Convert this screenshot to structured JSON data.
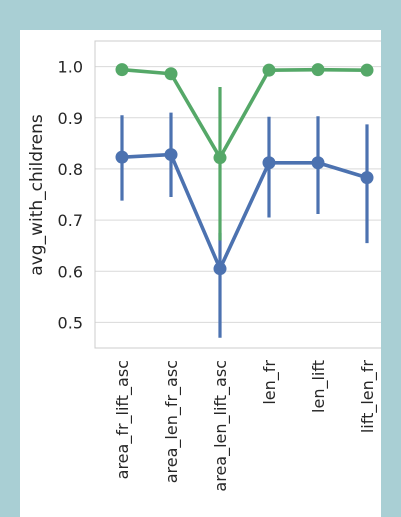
{
  "chart_data": {
    "type": "line",
    "xlabel": "",
    "ylabel": "avg_with_childrens",
    "categories": [
      "area_fr_lift_asc",
      "area_len_fr_asc",
      "area_len_lift_asc",
      "len_fr",
      "len_lift",
      "lift_len_fr"
    ],
    "category_labels": [
      "area_fr_lift_asc",
      "area_len_fr_asc",
      "area_len_lift_asc",
      "len_fr",
      "len_lift",
      "lift_len_fr"
    ],
    "ylim": [
      0.45,
      1.05
    ],
    "yticks": [
      0.5,
      0.6,
      0.7,
      0.8,
      0.9,
      1.0
    ],
    "ytick_labels": [
      "0.5",
      "0.6",
      "0.7",
      "0.8",
      "0.9",
      "1.0"
    ],
    "grid": true,
    "series": [
      {
        "color": "#4c72b0",
        "values": [
          0.823,
          0.828,
          0.605,
          0.812,
          0.812,
          0.783
        ],
        "err_low": [
          0.738,
          0.745,
          0.47,
          0.705,
          0.712,
          0.655
        ],
        "err_high": [
          0.905,
          0.91,
          0.675,
          0.902,
          0.903,
          0.887
        ]
      },
      {
        "color": "#55a868",
        "values": [
          0.994,
          0.986,
          0.822,
          0.993,
          0.994,
          0.993
        ],
        "err_low": [
          0.99,
          0.98,
          0.66,
          0.988,
          0.99,
          0.988
        ],
        "err_high": [
          0.998,
          0.991,
          0.96,
          0.998,
          0.998,
          0.998
        ]
      }
    ]
  }
}
